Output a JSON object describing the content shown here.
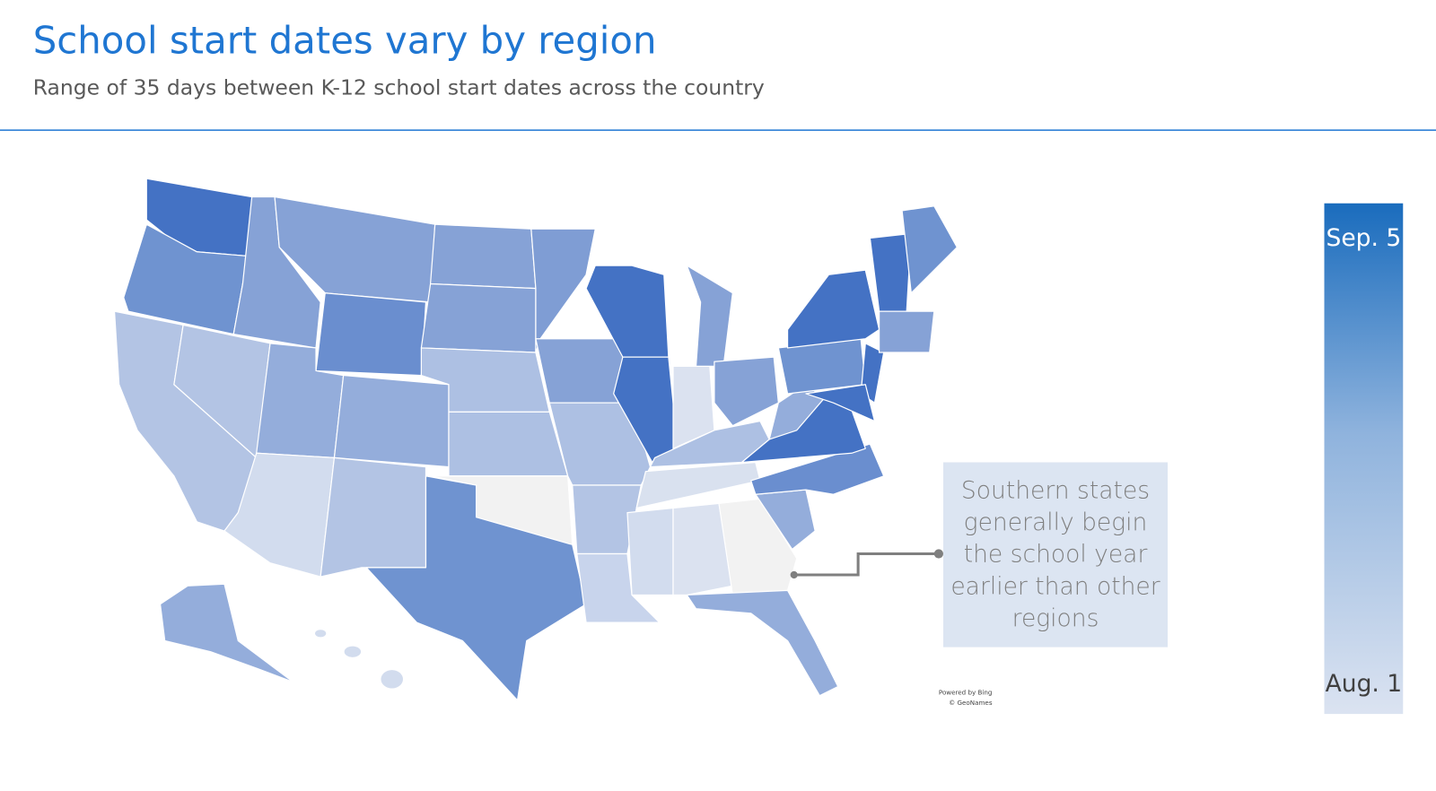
{
  "header": {
    "title": "School start dates vary by region",
    "subtitle": "Range of 35 days between K-12 school start dates across the country"
  },
  "legend": {
    "top": "Sep. 5",
    "bottom": "Aug. 1"
  },
  "annotation": "Southern states generally begin the school year earlier than other regions",
  "credits": [
    "Powered by Bing",
    "© GeoNames"
  ]
}
